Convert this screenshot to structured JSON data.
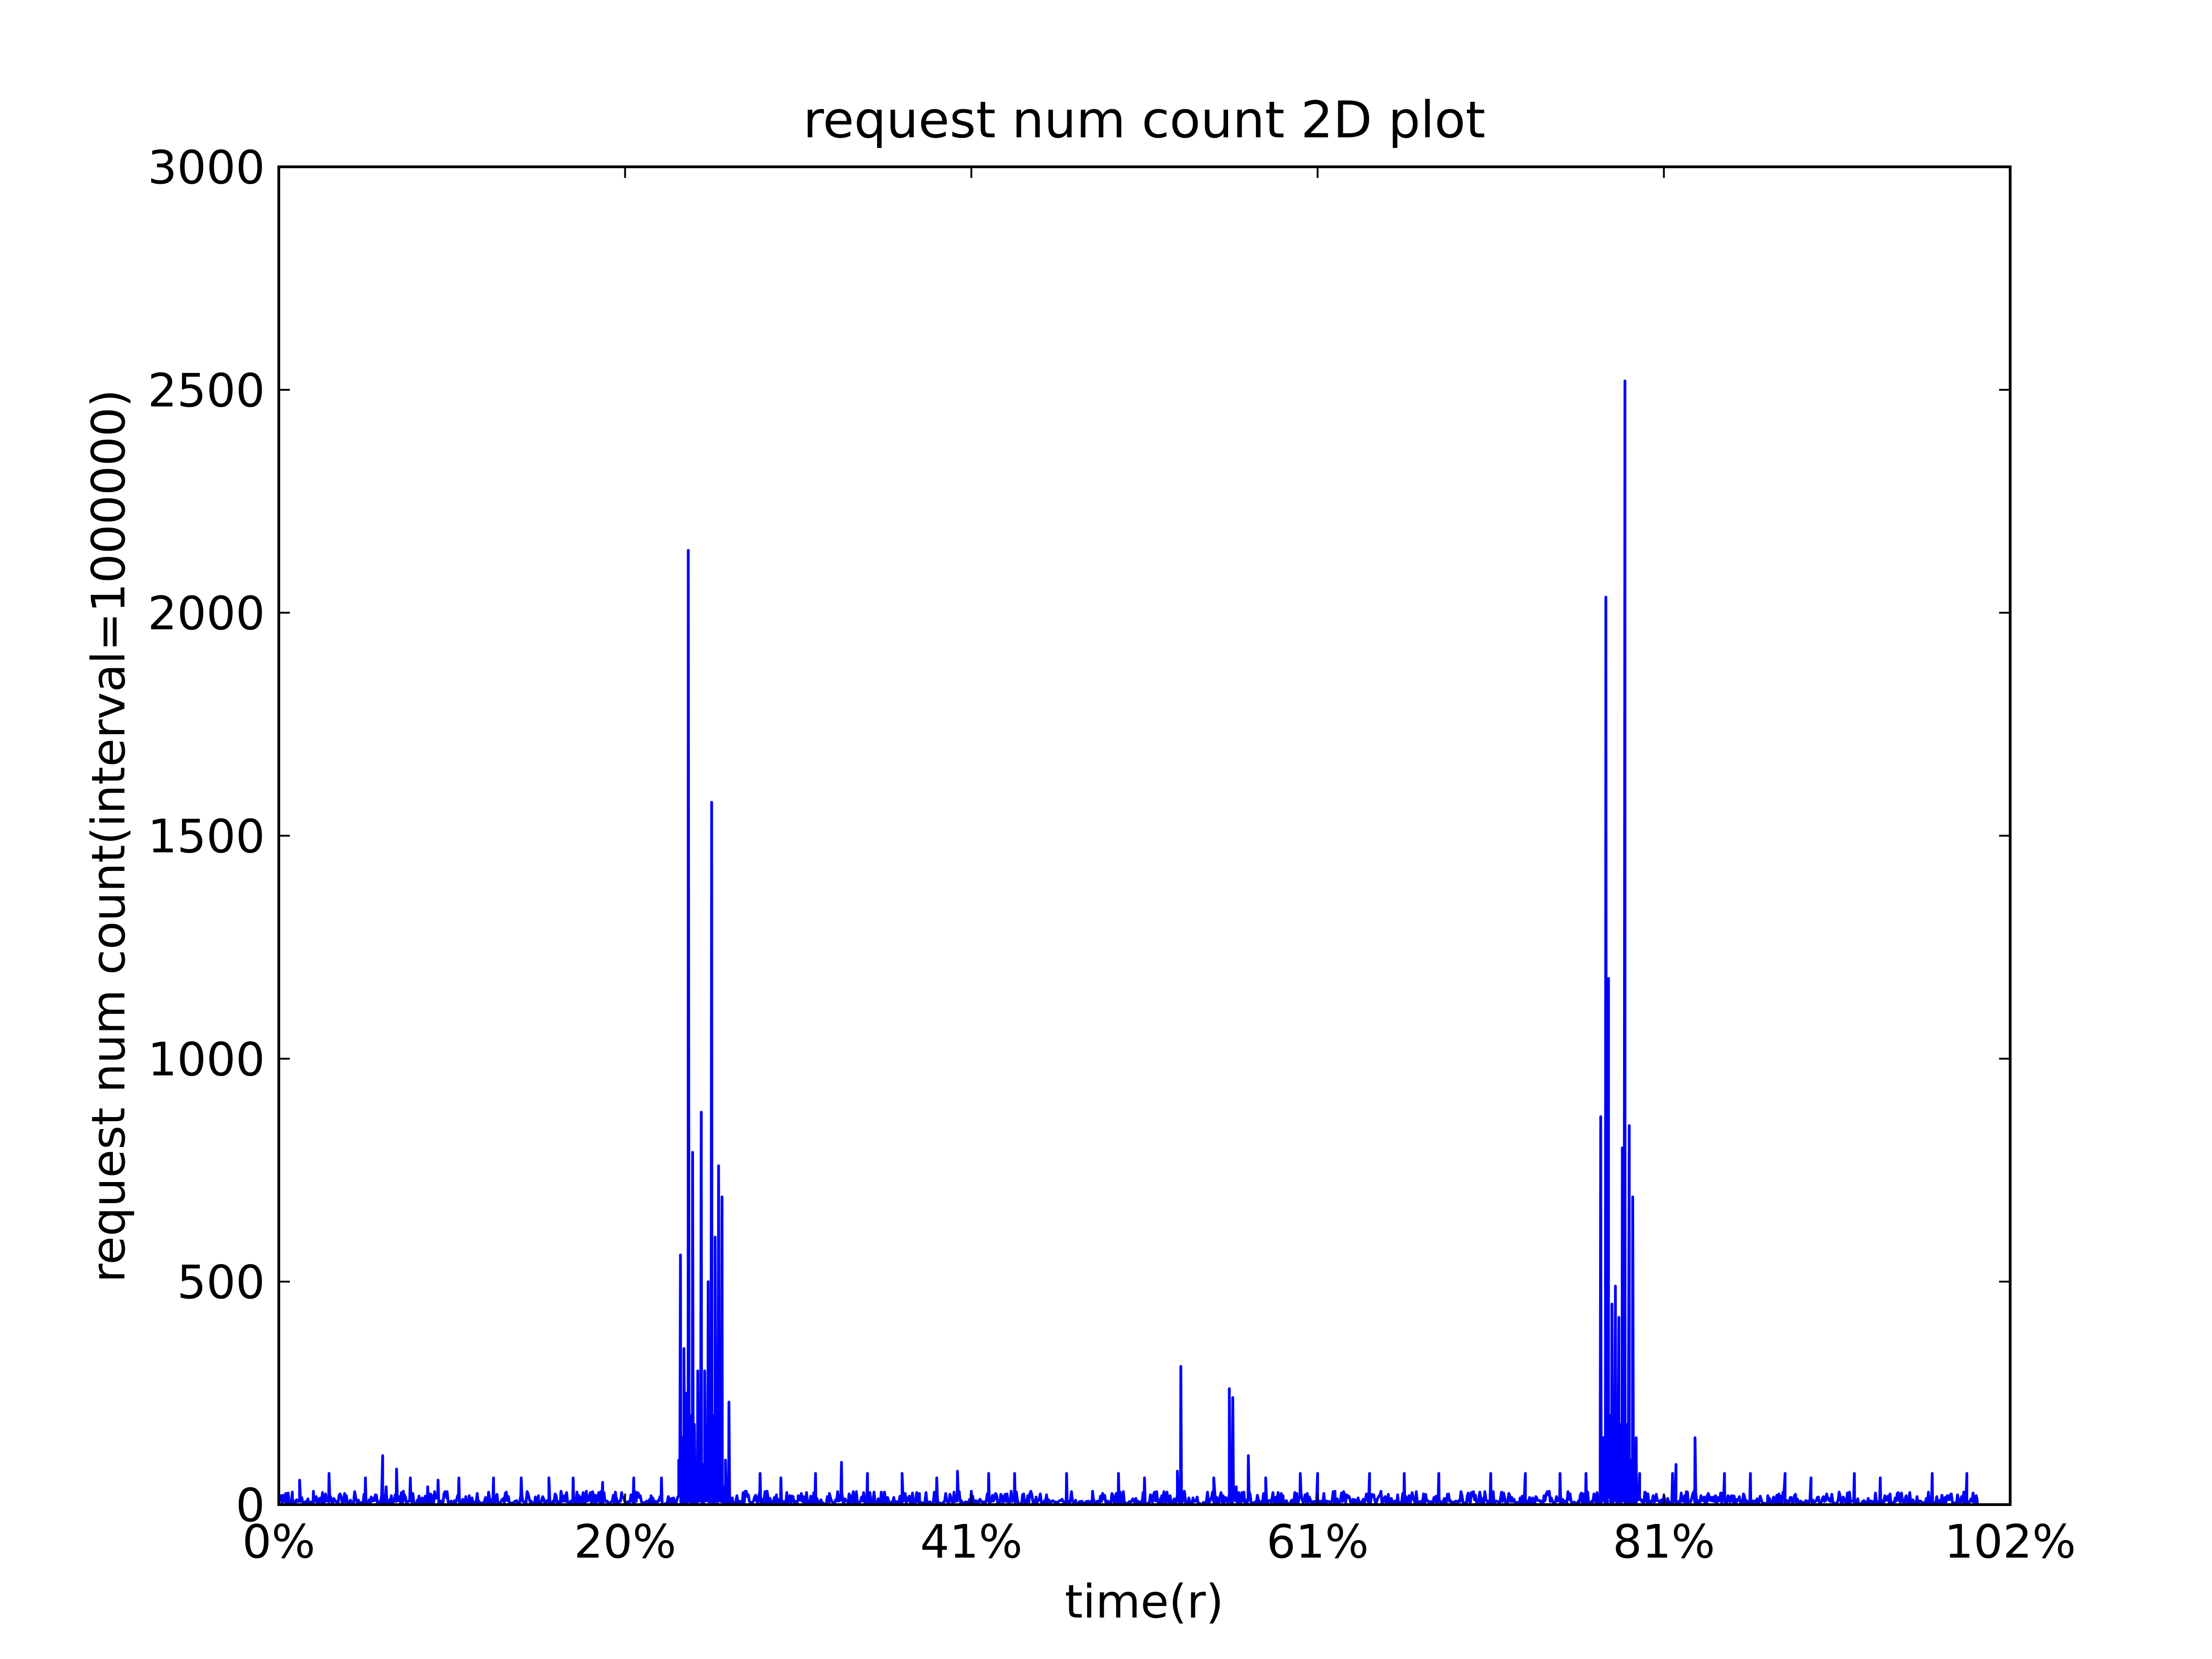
{
  "chart_data": {
    "type": "line",
    "title": "request num count 2D plot",
    "xlabel": "time(r)",
    "ylabel": "request num count(interval=1000000)",
    "xlim": [
      0,
      1
    ],
    "ylim": [
      0,
      3000
    ],
    "x_tick_labels": [
      "0%",
      "20%",
      "41%",
      "61%",
      "81%",
      "102%"
    ],
    "y_tick_values": [
      0,
      500,
      1000,
      1500,
      2000,
      2500,
      3000
    ],
    "y_tick_labels": [
      "0",
      "500",
      "1000",
      "1500",
      "2000",
      "2500",
      "3000"
    ],
    "grid": false,
    "series": [
      {
        "name": "request num count",
        "color": "#0000ff",
        "baseline_max": 30,
        "points": [
          [
            0.0,
            10
          ],
          [
            0.004,
            25
          ],
          [
            0.008,
            5
          ],
          [
            0.012,
            55
          ],
          [
            0.016,
            8
          ],
          [
            0.02,
            30
          ],
          [
            0.025,
            12
          ],
          [
            0.029,
            70
          ],
          [
            0.034,
            8
          ],
          [
            0.038,
            25
          ],
          [
            0.046,
            10
          ],
          [
            0.05,
            60
          ],
          [
            0.055,
            15
          ],
          [
            0.06,
            110
          ],
          [
            0.062,
            40
          ],
          [
            0.065,
            20
          ],
          [
            0.068,
            80
          ],
          [
            0.072,
            30
          ],
          [
            0.076,
            60
          ],
          [
            0.08,
            10
          ],
          [
            0.086,
            40
          ],
          [
            0.092,
            55
          ],
          [
            0.097,
            15
          ],
          [
            0.104,
            60
          ],
          [
            0.11,
            20
          ],
          [
            0.124,
            60
          ],
          [
            0.13,
            15
          ],
          [
            0.14,
            60
          ],
          [
            0.15,
            20
          ],
          [
            0.156,
            60
          ],
          [
            0.163,
            30
          ],
          [
            0.17,
            60
          ],
          [
            0.18,
            20
          ],
          [
            0.187,
            50
          ],
          [
            0.195,
            15
          ],
          [
            0.205,
            60
          ],
          [
            0.215,
            20
          ],
          [
            0.221,
            60
          ],
          [
            0.228,
            15
          ],
          [
            0.231,
            100
          ],
          [
            0.232,
            560
          ],
          [
            0.233,
            150
          ],
          [
            0.234,
            350
          ],
          [
            0.235,
            250
          ],
          [
            0.2365,
            2140
          ],
          [
            0.238,
            200
          ],
          [
            0.239,
            790
          ],
          [
            0.24,
            180
          ],
          [
            0.241,
            50
          ],
          [
            0.242,
            300
          ],
          [
            0.243,
            130
          ],
          [
            0.244,
            880
          ],
          [
            0.245,
            90
          ],
          [
            0.246,
            300
          ],
          [
            0.247,
            110
          ],
          [
            0.248,
            500
          ],
          [
            0.249,
            150
          ],
          [
            0.25,
            1575
          ],
          [
            0.251,
            200
          ],
          [
            0.252,
            600
          ],
          [
            0.253,
            100
          ],
          [
            0.254,
            760
          ],
          [
            0.255,
            240
          ],
          [
            0.256,
            690
          ],
          [
            0.257,
            40
          ],
          [
            0.258,
            100
          ],
          [
            0.259,
            20
          ],
          [
            0.26,
            230
          ],
          [
            0.262,
            15
          ],
          [
            0.27,
            30
          ],
          [
            0.278,
            70
          ],
          [
            0.282,
            30
          ],
          [
            0.29,
            60
          ],
          [
            0.3,
            20
          ],
          [
            0.31,
            70
          ],
          [
            0.318,
            25
          ],
          [
            0.325,
            95
          ],
          [
            0.33,
            20
          ],
          [
            0.34,
            70
          ],
          [
            0.35,
            25
          ],
          [
            0.36,
            70
          ],
          [
            0.37,
            25
          ],
          [
            0.38,
            60
          ],
          [
            0.392,
            75
          ],
          [
            0.4,
            30
          ],
          [
            0.41,
            70
          ],
          [
            0.425,
            70
          ],
          [
            0.44,
            20
          ],
          [
            0.455,
            70
          ],
          [
            0.47,
            30
          ],
          [
            0.485,
            70
          ],
          [
            0.5,
            60
          ],
          [
            0.51,
            20
          ],
          [
            0.519,
            75
          ],
          [
            0.521,
            310
          ],
          [
            0.523,
            30
          ],
          [
            0.54,
            60
          ],
          [
            0.549,
            260
          ],
          [
            0.55,
            30
          ],
          [
            0.551,
            240
          ],
          [
            0.553,
            40
          ],
          [
            0.56,
            110
          ],
          [
            0.57,
            60
          ],
          [
            0.58,
            20
          ],
          [
            0.59,
            70
          ],
          [
            0.6,
            70
          ],
          [
            0.61,
            30
          ],
          [
            0.63,
            70
          ],
          [
            0.65,
            70
          ],
          [
            0.67,
            70
          ],
          [
            0.69,
            20
          ],
          [
            0.7,
            70
          ],
          [
            0.72,
            70
          ],
          [
            0.74,
            70
          ],
          [
            0.755,
            70
          ],
          [
            0.76,
            20
          ],
          [
            0.7635,
            870
          ],
          [
            0.765,
            150
          ],
          [
            0.7665,
            2035
          ],
          [
            0.768,
            1180
          ],
          [
            0.769,
            200
          ],
          [
            0.77,
            450
          ],
          [
            0.771,
            130
          ],
          [
            0.772,
            490
          ],
          [
            0.773,
            60
          ],
          [
            0.774,
            420
          ],
          [
            0.775,
            180
          ],
          [
            0.776,
            800
          ],
          [
            0.7775,
            2520
          ],
          [
            0.779,
            180
          ],
          [
            0.78,
            850
          ],
          [
            0.781,
            100
          ],
          [
            0.782,
            690
          ],
          [
            0.783,
            60
          ],
          [
            0.784,
            150
          ],
          [
            0.785,
            40
          ],
          [
            0.786,
            70
          ],
          [
            0.788,
            10
          ],
          [
            0.8,
            20
          ],
          [
            0.805,
            70
          ],
          [
            0.807,
            90
          ],
          [
            0.812,
            20
          ],
          [
            0.818,
            150
          ],
          [
            0.825,
            20
          ],
          [
            0.835,
            70
          ],
          [
            0.85,
            70
          ],
          [
            0.86,
            20
          ],
          [
            0.87,
            70
          ],
          [
            0.885,
            60
          ],
          [
            0.895,
            15
          ],
          [
            0.91,
            70
          ],
          [
            0.925,
            60
          ],
          [
            0.94,
            20
          ],
          [
            0.955,
            70
          ],
          [
            0.965,
            20
          ],
          [
            0.975,
            70
          ],
          [
            0.981,
            10
          ]
        ]
      }
    ]
  }
}
